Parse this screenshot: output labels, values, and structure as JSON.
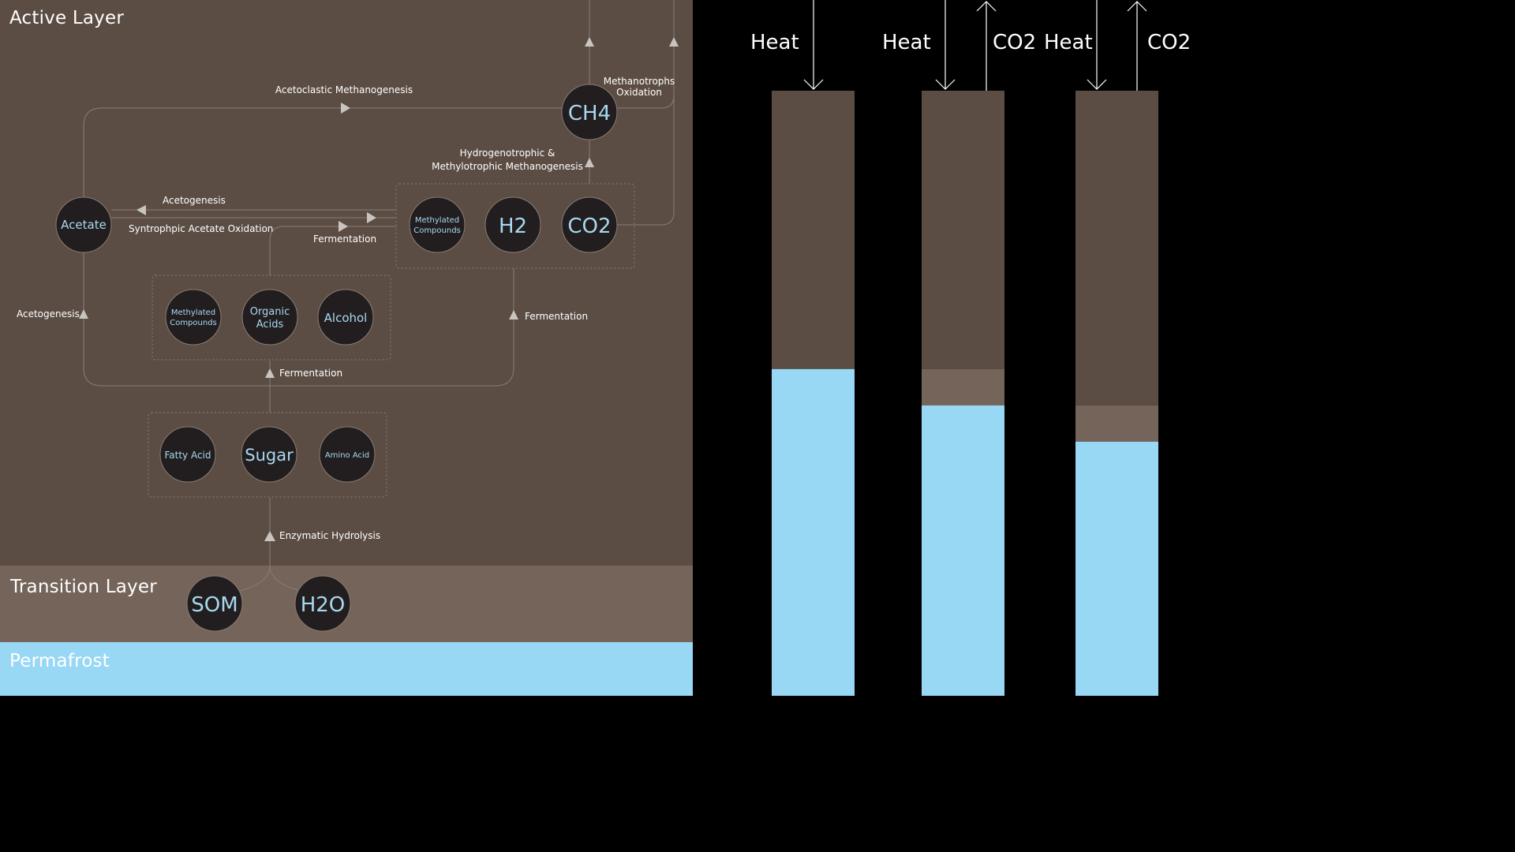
{
  "layers": {
    "active": "Active Layer",
    "transition": "Transition Layer",
    "permafrost": "Permafrost"
  },
  "nodes": {
    "ch4": "CH4",
    "acetate": "Acetate",
    "methylated_top_1": "Methylated",
    "methylated_top_2": "Compounds",
    "h2": "H2",
    "co2": "CO2",
    "methylated_mid_1": "Methylated",
    "methylated_mid_2": "Compounds",
    "organic_acids_1": "Organic",
    "organic_acids_2": "Acids",
    "alcohol": "Alcohol",
    "fatty_acid": "Fatty Acid",
    "sugar": "Sugar",
    "amino_acid": "Amino Acid",
    "som": "SOM",
    "h2o": "H2O"
  },
  "processes": {
    "acetoclastic": "Acetoclastic Methanogenesis",
    "methanotrophs_1": "Methanotrophs",
    "methanotrophs_2": "Oxidation",
    "hydrogenotrophic_1": "Hydrogenotrophic &",
    "hydrogenotrophic_2": "Methylotrophic Methanogenesis",
    "acetogenesis_top": "Acetogenesis",
    "syntrophic": "Syntrophpic Acetate Oxidation",
    "fermentation_top": "Fermentation",
    "acetogenesis_left": "Acetogenesis",
    "fermentation_right": "Fermentation",
    "fermentation_mid": "Fermentation",
    "enzymatic": "Enzymatic Hydrolysis"
  },
  "columns": [
    {
      "labels": [
        "Heat"
      ],
      "fluxes": [
        "heat-in"
      ],
      "active_fraction": 0.46,
      "transition_fraction": 0.0
    },
    {
      "labels": [
        "Heat",
        "CO2"
      ],
      "fluxes": [
        "heat-in",
        "co2-out"
      ],
      "active_fraction": 0.46,
      "transition_fraction": 0.06
    },
    {
      "labels": [
        "Heat",
        "CO2"
      ],
      "fluxes": [
        "heat-in",
        "co2-out"
      ],
      "active_fraction": 0.52,
      "transition_fraction": 0.06
    }
  ],
  "colors": {
    "active": "#5c4d44",
    "transition": "#75645a",
    "permafrost": "#98d8f5",
    "node_fill": "#221e1f",
    "node_text": "#a8d8f0",
    "background": "#000000"
  }
}
